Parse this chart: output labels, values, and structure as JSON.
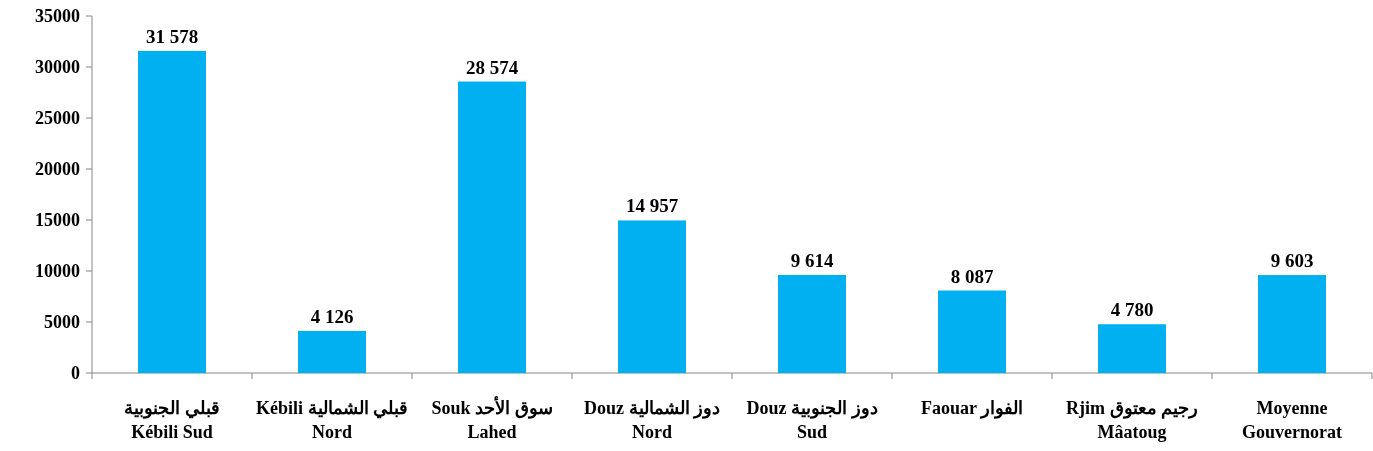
{
  "chart_data": {
    "type": "bar",
    "categories": [
      "قبلي الجنوبية\nKébili Sud",
      "Kébili قبلي الشمالية\nNord",
      "Souk سوق الأحد\nLahed",
      "Douz دوز الشمالية\nNord",
      "Douz دوز الجنوبية\nSud",
      "Faouar الفوار",
      "Rjim رجيم معتوق\nMâatoug",
      "Moyenne\nGouvernorat"
    ],
    "values": [
      31578,
      4126,
      28574,
      14957,
      9614,
      8087,
      4780,
      9603
    ],
    "value_labels": [
      "31 578",
      "4 126",
      "28 574",
      "14 957",
      "9 614",
      "8 087",
      "4 780",
      "9 603"
    ],
    "color": "#00b0f0",
    "ylim": [
      0,
      35000
    ],
    "yticks": [
      0,
      5000,
      10000,
      15000,
      20000,
      25000,
      30000,
      35000
    ],
    "grid": false
  }
}
